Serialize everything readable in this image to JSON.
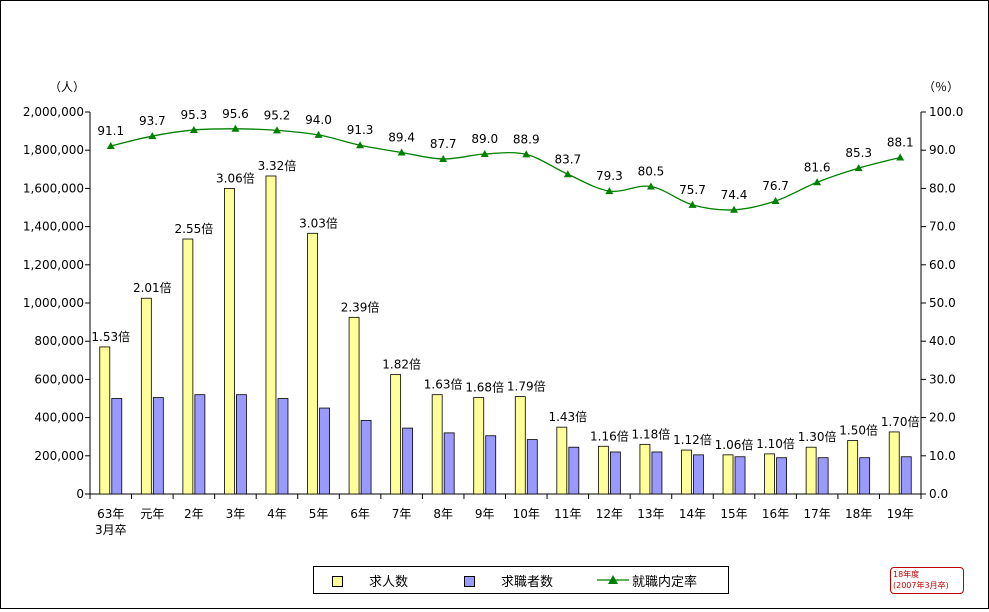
{
  "chart_data": {
    "type": "bar",
    "title": "",
    "left_unit": "（人）",
    "right_unit": "（％）",
    "categories": [
      [
        "63年",
        "3月卒"
      ],
      [
        "元年"
      ],
      [
        "2年"
      ],
      [
        "3年"
      ],
      [
        "4年"
      ],
      [
        "5年"
      ],
      [
        "6年"
      ],
      [
        "7年"
      ],
      [
        "8年"
      ],
      [
        "9年"
      ],
      [
        "10年"
      ],
      [
        "11年"
      ],
      [
        "12年"
      ],
      [
        "13年"
      ],
      [
        "14年"
      ],
      [
        "15年"
      ],
      [
        "16年"
      ],
      [
        "17年"
      ],
      [
        "18年"
      ],
      [
        "19年"
      ]
    ],
    "ylim_left": [
      0,
      2000000
    ],
    "ylim_right": [
      0,
      100
    ],
    "left_ticks": [
      "0",
      "200,000",
      "400,000",
      "600,000",
      "800,000",
      "1,000,000",
      "1,200,000",
      "1,400,000",
      "1,600,000",
      "1,800,000",
      "2,000,000"
    ],
    "right_ticks": [
      "0.0",
      "10.0",
      "20.0",
      "30.0",
      "40.0",
      "50.0",
      "60.0",
      "70.0",
      "80.0",
      "90.0",
      "100.0"
    ],
    "series": [
      {
        "name": "求人数",
        "kind": "bar",
        "axis": "left",
        "color": "#ffff99",
        "values": [
          770000,
          1025000,
          1335000,
          1600000,
          1665000,
          1365000,
          925000,
          625000,
          520000,
          505000,
          510000,
          350000,
          250000,
          260000,
          230000,
          205000,
          210000,
          245000,
          280000,
          325000
        ]
      },
      {
        "name": "求職者数",
        "kind": "bar",
        "axis": "left",
        "color": "#9999ff",
        "values": [
          500000,
          505000,
          520000,
          520000,
          500000,
          450000,
          385000,
          345000,
          320000,
          305000,
          285000,
          245000,
          220000,
          220000,
          205000,
          195000,
          190000,
          190000,
          190000,
          195000
        ]
      },
      {
        "name": "就職内定率",
        "kind": "line",
        "axis": "right",
        "color": "#008000",
        "values": [
          91.1,
          93.7,
          95.3,
          95.6,
          95.2,
          94.0,
          91.3,
          89.4,
          87.7,
          89.0,
          88.9,
          83.7,
          79.3,
          80.5,
          75.7,
          74.4,
          76.7,
          81.6,
          85.3,
          88.1
        ]
      }
    ],
    "ratio_labels": [
      "1.53倍",
      "2.01倍",
      "2.55倍",
      "3.06倍",
      "3.32倍",
      "3.03倍",
      "2.39倍",
      "1.82倍",
      "1.63倍",
      "1.68倍",
      "1.79倍",
      "1.43倍",
      "1.16倍",
      "1.18倍",
      "1.12倍",
      "1.06倍",
      "1.10倍",
      "1.30倍",
      "1.50倍",
      "1.70倍"
    ],
    "rate_labels": [
      "91.1",
      "93.7",
      "95.3",
      "95.6",
      "95.2",
      "94.0",
      "91.3",
      "89.4",
      "87.7",
      "89.0",
      "88.9",
      "83.7",
      "79.3",
      "80.5",
      "75.7",
      "74.4",
      "76.7",
      "81.6",
      "85.3",
      "88.1"
    ],
    "legend_placement": "bottom",
    "grid": false
  },
  "legend": {
    "bar1": "求人数",
    "bar2": "求職者数",
    "line": "就職内定率"
  },
  "note": {
    "line1": "18年度",
    "line2": "(2007年3月卒)"
  },
  "colors": {
    "job_offers": "#ffff99",
    "job_seekers": "#9999ff",
    "rate_line": "#008000",
    "note": "#c00000"
  }
}
